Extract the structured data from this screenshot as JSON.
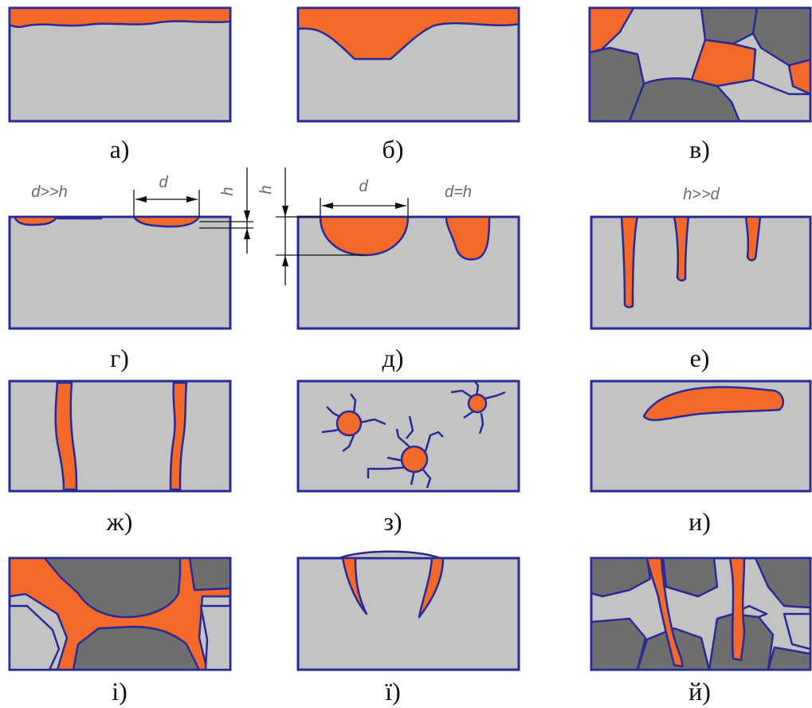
{
  "colors": {
    "base": "#c3c3c3",
    "grain_dark": "#6e6e6e",
    "corrosion": "#f2692a",
    "outline": "#2a2a96"
  },
  "captions": {
    "a": "а)",
    "b": "б)",
    "v": "в)",
    "g": "г)",
    "d": "д)",
    "e": "е)",
    "zh": "ж)",
    "z": "з)",
    "i": "и)",
    "i2": "і)",
    "yi": "ї)",
    "y": "й)"
  },
  "labels": {
    "g_ratio": "d>>h",
    "g_d": "d",
    "g_h": "h",
    "d_h": "h",
    "d_d": "d",
    "d_ratio": "d=h",
    "e_ratio": "h>>d"
  }
}
